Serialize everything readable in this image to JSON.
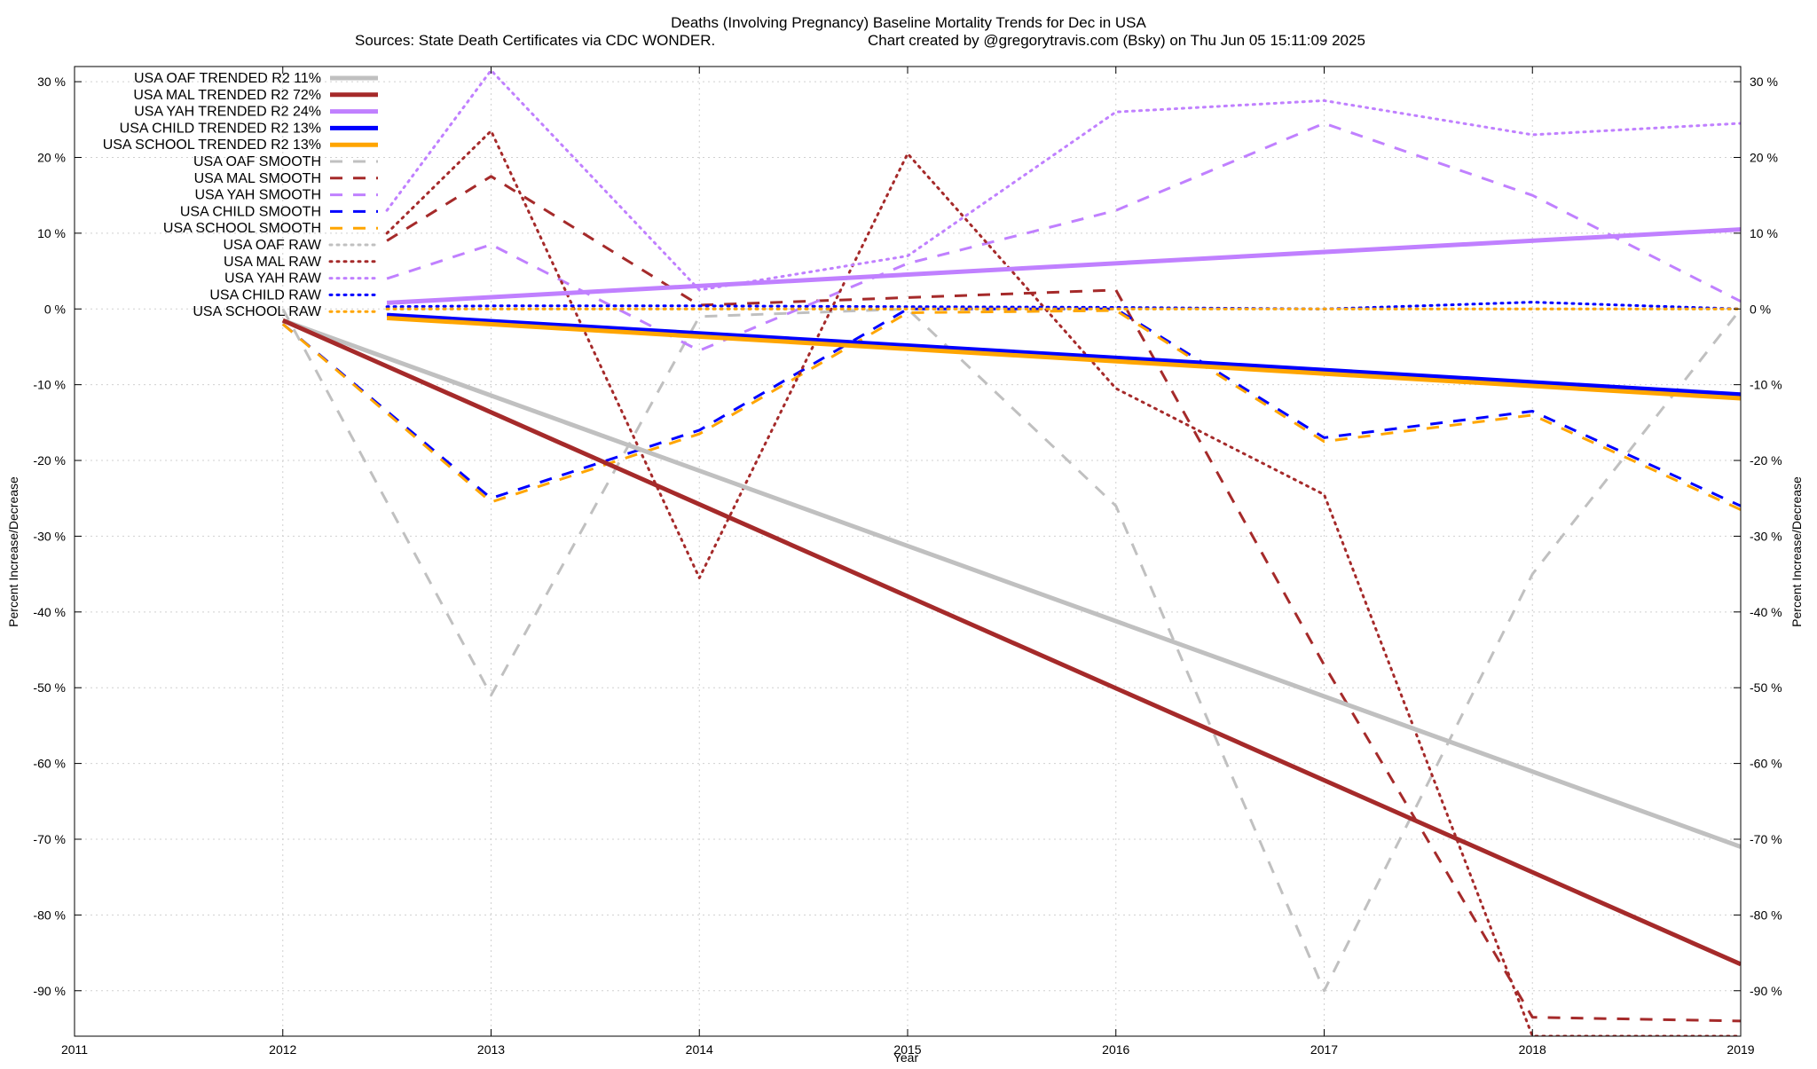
{
  "chart_data": {
    "type": "line",
    "title_line1": "Deaths (Involving Pregnancy)  Baseline Mortality Trends for Dec in USA",
    "title_line2_left": "Sources: State Death Certificates via CDC WONDER.",
    "title_line2_right": "Chart created by @gregorytravis.com (Bsky) on Thu Jun 05 15:11:09 2025",
    "xlabel": "Year",
    "ylabel_left": "Percent Increase/Decrease",
    "ylabel_right": "Percent Increase/Decrease",
    "xlim": [
      2011,
      2019
    ],
    "ylim": [
      -96,
      32
    ],
    "x_ticks": [
      2011,
      2012,
      2013,
      2014,
      2015,
      2016,
      2017,
      2018,
      2019
    ],
    "x_tick_labels": [
      "2011",
      "2012",
      "2013",
      "2014",
      "2015",
      "2016",
      "2017",
      "2018",
      "2019"
    ],
    "y_ticks": [
      30,
      20,
      10,
      0,
      -10,
      -20,
      -30,
      -40,
      -50,
      -60,
      -70,
      -80,
      -90
    ],
    "y_tick_labels": [
      "30 %",
      "20 %",
      "10 %",
      "0 %",
      "-10 %",
      "-20 %",
      "-30 %",
      "-40 %",
      "-50 %",
      "-60 %",
      "-70 %",
      "-80 %",
      "-90 %"
    ],
    "grid": true,
    "legend_position": "top-left",
    "series": [
      {
        "name": "USA OAF TRENDED R2  11%",
        "style": "solid",
        "color": "#c0c0c0",
        "width": 5,
        "x": [
          2012,
          2019
        ],
        "y": [
          -1.5,
          -71
        ]
      },
      {
        "name": "USA MAL TRENDED R2  72%",
        "style": "solid",
        "color": "#a52a2a",
        "width": 5,
        "x": [
          2012,
          2019
        ],
        "y": [
          -1.5,
          -86.5
        ]
      },
      {
        "name": "USA YAH TRENDED R2  24%",
        "style": "solid",
        "color": "#c080ff",
        "width": 5,
        "x": [
          2012.5,
          2019
        ],
        "y": [
          0.8,
          10.5
        ]
      },
      {
        "name": "USA CHILD TRENDED R2  13%",
        "style": "solid",
        "color": "#0000ff",
        "width": 5,
        "x": [
          2012.5,
          2019
        ],
        "y": [
          -0.8,
          -11.3
        ]
      },
      {
        "name": "USA SCHOOL TRENDED R2  13%",
        "style": "solid",
        "color": "#ffa500",
        "width": 5,
        "x": [
          2012.5,
          2019
        ],
        "y": [
          -1.2,
          -11.8
        ]
      },
      {
        "name": "USA OAF SMOOTH",
        "style": "dashed",
        "color": "#c0c0c0",
        "width": 3,
        "x": [
          2012,
          2013,
          2014,
          2015,
          2016,
          2017,
          2018,
          2019
        ],
        "y": [
          0,
          -51,
          -1,
          0,
          -26,
          -90,
          -35,
          0
        ]
      },
      {
        "name": "USA MAL SMOOTH",
        "style": "dashed",
        "color": "#a52a2a",
        "width": 3,
        "x": [
          2012.5,
          2013,
          2014,
          2015,
          2016,
          2017,
          2018,
          2019
        ],
        "y": [
          9,
          17.5,
          0.5,
          1.5,
          2.5,
          -47,
          -93.5,
          -94
        ]
      },
      {
        "name": "USA YAH SMOOTH",
        "style": "dashed",
        "color": "#c080ff",
        "width": 3,
        "x": [
          2012.5,
          2013,
          2014,
          2015,
          2016,
          2017,
          2018,
          2019
        ],
        "y": [
          4,
          8.5,
          -5.5,
          6,
          13,
          24.5,
          15,
          1
        ]
      },
      {
        "name": "USA CHILD SMOOTH",
        "style": "dashed",
        "color": "#0000ff",
        "width": 3,
        "x": [
          2012,
          2013,
          2014,
          2015,
          2016,
          2017,
          2018,
          2019
        ],
        "y": [
          -2,
          -25,
          -16,
          0,
          0,
          -17,
          -13.5,
          -26
        ]
      },
      {
        "name": "USA SCHOOL SMOOTH",
        "style": "dashed",
        "color": "#ffa500",
        "width": 3,
        "x": [
          2012,
          2013,
          2014,
          2015,
          2016,
          2017,
          2018,
          2019
        ],
        "y": [
          -2,
          -25.5,
          -16.5,
          -0.5,
          -0.2,
          -17.5,
          -14,
          -26.5
        ]
      },
      {
        "name": "USA OAF RAW",
        "style": "dotted",
        "color": "#c0c0c0",
        "width": 3,
        "x": [
          2012.5,
          2019
        ],
        "y": [
          0,
          0
        ]
      },
      {
        "name": "USA MAL RAW",
        "style": "dotted",
        "color": "#a52a2a",
        "width": 3,
        "x": [
          2012.5,
          2013,
          2014,
          2015,
          2016,
          2017,
          2018,
          2019
        ],
        "y": [
          10,
          23.5,
          -35.5,
          20.5,
          -10.5,
          -24.5,
          -96,
          -96
        ]
      },
      {
        "name": "USA YAH RAW",
        "style": "dotted",
        "color": "#c080ff",
        "width": 3,
        "x": [
          2012.5,
          2013,
          2014,
          2015,
          2016,
          2017,
          2018,
          2019
        ],
        "y": [
          13,
          31.5,
          2.5,
          7,
          26,
          27.5,
          23,
          24.5
        ]
      },
      {
        "name": "USA CHILD RAW",
        "style": "dotted",
        "color": "#0000ff",
        "width": 3,
        "x": [
          2012.5,
          2013,
          2014,
          2015,
          2016,
          2017,
          2018,
          2019
        ],
        "y": [
          0.3,
          0.4,
          0.4,
          0.3,
          0.2,
          0,
          0.9,
          0
        ]
      },
      {
        "name": "USA SCHOOL RAW",
        "style": "dotted",
        "color": "#ffa500",
        "width": 3,
        "x": [
          2012.5,
          2019
        ],
        "y": [
          0,
          0
        ]
      }
    ]
  }
}
